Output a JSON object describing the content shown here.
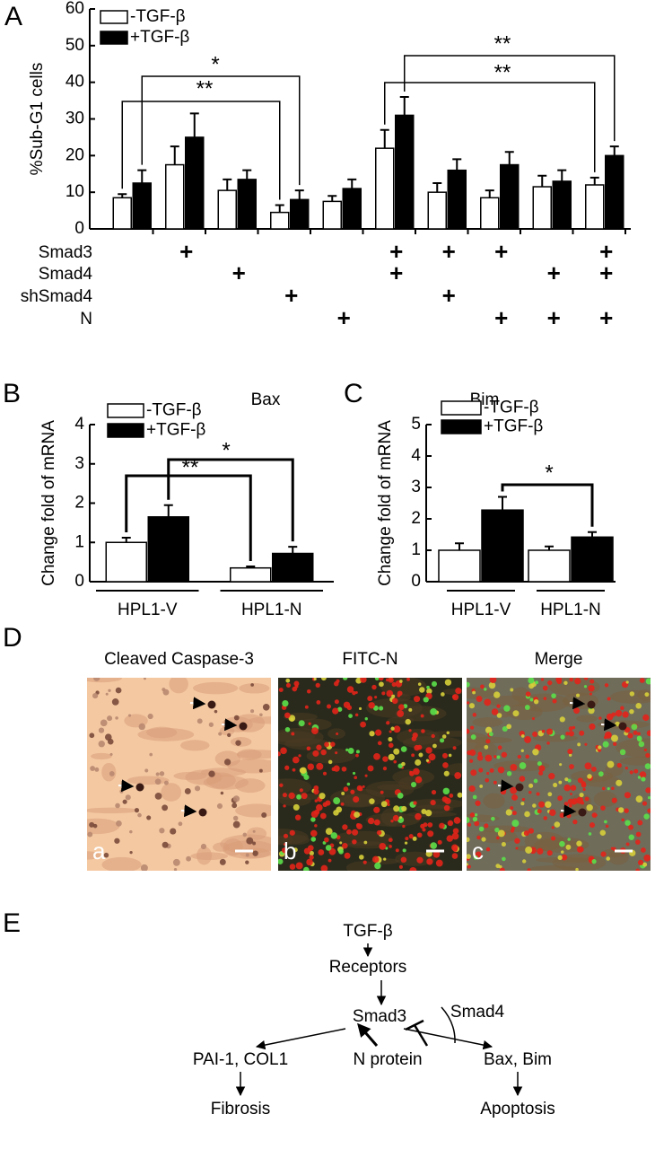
{
  "panel_labels": [
    "A",
    "B",
    "C",
    "D",
    "E"
  ],
  "chart_data": [
    {
      "type": "bar",
      "ylabel": "%Sub-G1 cells",
      "categories": [
        null,
        null,
        null,
        null,
        null,
        null,
        null,
        null,
        null,
        null
      ],
      "series": [
        {
          "name": "-TGF-β",
          "color": "#ffffff",
          "values": [
            8.5,
            17.5,
            10.5,
            4.5,
            7.5,
            22,
            10,
            8.5,
            11.5,
            12
          ],
          "errors": [
            1,
            5,
            3,
            2,
            1.5,
            5,
            2.5,
            2,
            3,
            2
          ]
        },
        {
          "name": "+TGF-β",
          "color": "#000000",
          "values": [
            12.5,
            25,
            13.5,
            8,
            11,
            31,
            16,
            17.5,
            13,
            20
          ],
          "errors": [
            3.5,
            6.5,
            2.5,
            2.5,
            2.5,
            5,
            3,
            3.5,
            3,
            2.5
          ]
        }
      ],
      "ylim": [
        0,
        60
      ],
      "yticks": [
        0,
        10,
        20,
        30,
        40,
        50,
        60
      ],
      "grid": false,
      "annotations": [
        "**",
        "*",
        "**",
        "**"
      ],
      "treatments": [
        {
          "name": "Smad3",
          "marks": [
            null,
            "+",
            null,
            null,
            null,
            "+",
            "+",
            "+",
            null,
            "+"
          ]
        },
        {
          "name": "Smad4",
          "marks": [
            null,
            null,
            "+",
            null,
            null,
            "+",
            null,
            null,
            "+",
            "+"
          ]
        },
        {
          "name": "shSmad4",
          "marks": [
            null,
            null,
            null,
            "+",
            null,
            null,
            "+",
            null,
            null,
            null
          ]
        },
        {
          "name": "N",
          "marks": [
            null,
            null,
            null,
            null,
            "+",
            null,
            null,
            "+",
            "+",
            "+"
          ]
        }
      ]
    },
    {
      "type": "bar",
      "title": "Bax",
      "ylabel": "Change fold of mRNA",
      "categories": [
        "HPL1-V",
        "HPL1-N"
      ],
      "series": [
        {
          "name": "-TGF-β",
          "color": "#ffffff",
          "values": [
            1,
            0.35
          ],
          "errors": [
            0.12,
            0.04
          ]
        },
        {
          "name": "+TGF-β",
          "color": "#000000",
          "values": [
            1.65,
            0.72
          ],
          "errors": [
            0.3,
            0.17
          ]
        }
      ],
      "ylim": [
        0,
        4
      ],
      "yticks": [
        0,
        1,
        2,
        3,
        4
      ],
      "grid": false,
      "annotations": [
        "**",
        "*"
      ]
    },
    {
      "type": "bar",
      "title": "Bim",
      "ylabel": "Change fold of mRNA",
      "categories": [
        "HPL1-V",
        "HPL1-N"
      ],
      "series": [
        {
          "name": "-TGF-β",
          "color": "#ffffff",
          "values": [
            1,
            1
          ],
          "errors": [
            0.22,
            0.12
          ]
        },
        {
          "name": "+TGF-β",
          "color": "#000000",
          "values": [
            2.28,
            1.42
          ],
          "errors": [
            0.42,
            0.16
          ]
        }
      ],
      "ylim": [
        0,
        5
      ],
      "yticks": [
        0,
        1,
        2,
        3,
        4,
        5
      ],
      "grid": false,
      "annotations": [
        "*"
      ]
    }
  ],
  "micrographs": [
    {
      "title": "Cleaved Caspase-3",
      "label": "a"
    },
    {
      "title": "FITC-N",
      "label": "b"
    },
    {
      "title": "Merge",
      "label": "c"
    }
  ],
  "diagram": {
    "nodes": [
      "TGF-β",
      "Receptors",
      "Smad3",
      "Smad4",
      "PAI-1, COL1",
      "N protein",
      "Bax, Bim",
      "Fibrosis",
      "Apoptosis"
    ]
  }
}
